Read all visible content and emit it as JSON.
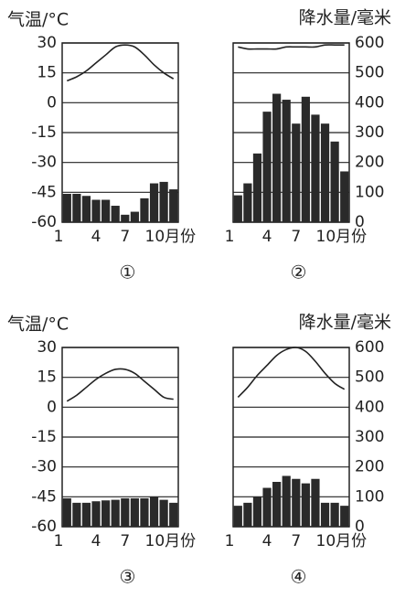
{
  "chart_data": [
    {
      "type": "climate",
      "title": "①",
      "y_label": "气温/°C",
      "categories": [
        "1",
        null,
        null,
        "4",
        null,
        null,
        "7",
        null,
        null,
        "10月份",
        null,
        null
      ],
      "temperature": [
        11,
        13,
        16,
        20,
        24,
        28,
        29,
        28,
        24,
        19,
        15,
        12
      ],
      "precipitation": [
        95,
        95,
        88,
        75,
        75,
        55,
        25,
        35,
        80,
        130,
        135,
        110
      ],
      "ylim": [
        -60,
        30
      ],
      "yticks": [
        30,
        15,
        0,
        -15,
        -30,
        -45,
        -60
      ],
      "y2lim": [
        0,
        600
      ],
      "line_color": "#222",
      "bar_color": "#2a2a2a"
    },
    {
      "type": "climate",
      "title": "②",
      "y2_label": "降水量/毫米",
      "categories": [
        "1",
        null,
        null,
        "4",
        null,
        null,
        "7",
        null,
        null,
        "10月份",
        null,
        null
      ],
      "temperature": [
        28,
        27,
        27,
        27,
        27,
        28,
        28,
        28,
        28,
        29,
        29,
        29
      ],
      "precipitation": [
        90,
        130,
        230,
        370,
        430,
        410,
        330,
        420,
        360,
        330,
        270,
        170
      ],
      "ylim": [
        -60,
        30
      ],
      "y2lim": [
        0,
        600
      ],
      "y2ticks": [
        600,
        500,
        400,
        300,
        200,
        100,
        0
      ],
      "line_color": "#222",
      "bar_color": "#2a2a2a"
    },
    {
      "type": "climate",
      "title": "③",
      "y_label": "气温/°C",
      "categories": [
        "1",
        null,
        null,
        "4",
        null,
        null,
        "7",
        null,
        null,
        "10月份",
        null,
        null
      ],
      "temperature": [
        3,
        6,
        10,
        14,
        17,
        19,
        19,
        17,
        13,
        9,
        5,
        4
      ],
      "precipitation": [
        95,
        80,
        80,
        85,
        88,
        90,
        95,
        95,
        95,
        100,
        90,
        80
      ],
      "ylim": [
        -60,
        30
      ],
      "yticks": [
        30,
        15,
        0,
        -15,
        -30,
        -45,
        -60
      ],
      "y2lim": [
        0,
        600
      ],
      "line_color": "#222",
      "bar_color": "#2a2a2a"
    },
    {
      "type": "climate",
      "title": "④",
      "y2_label": "降水量/毫米",
      "categories": [
        "1",
        null,
        null,
        "4",
        null,
        null,
        "7",
        null,
        null,
        "10月份",
        null,
        null
      ],
      "temperature": [
        5,
        10,
        16,
        21,
        26,
        29,
        30,
        28,
        23,
        17,
        12,
        9
      ],
      "precipitation": [
        70,
        80,
        100,
        130,
        150,
        170,
        160,
        145,
        160,
        80,
        80,
        70
      ],
      "ylim": [
        -60,
        30
      ],
      "y2lim": [
        0,
        600
      ],
      "y2ticks": [
        600,
        500,
        400,
        300,
        200,
        100,
        0
      ],
      "line_color": "#222",
      "bar_color": "#2a2a2a"
    }
  ]
}
